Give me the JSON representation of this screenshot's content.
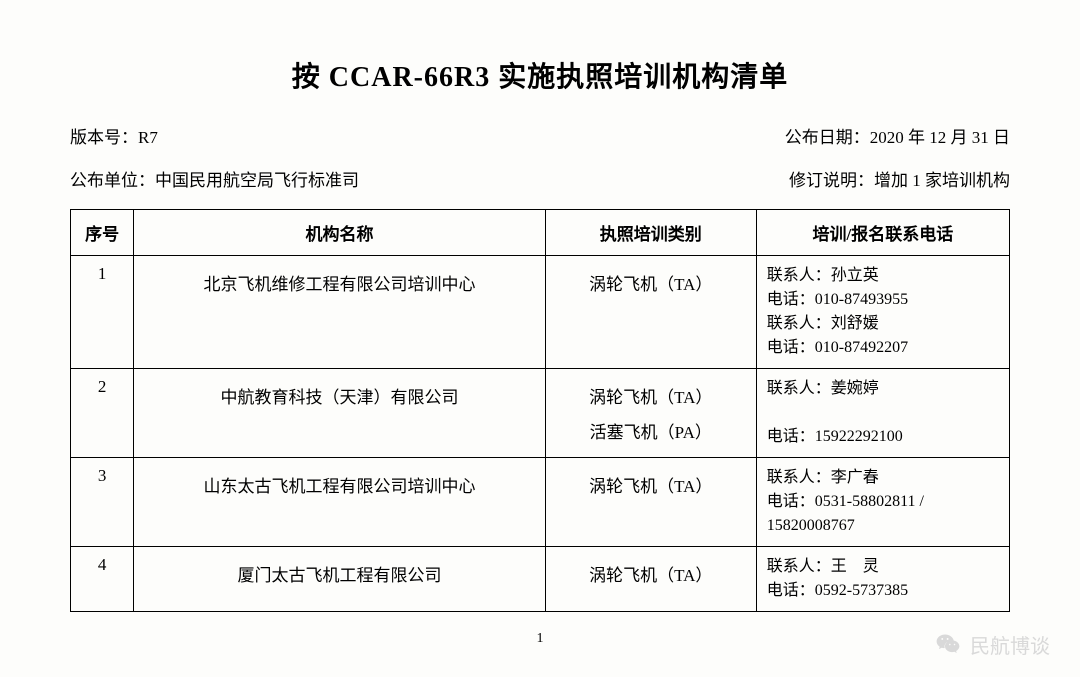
{
  "title": "按 CCAR-66R3 实施执照培训机构清单",
  "meta": {
    "version_label": "版本号：",
    "version_value": "R7",
    "pub_date_label": "公布日期：",
    "pub_date_value": "2020 年 12 月 31 日",
    "pub_org_label": "公布单位：",
    "pub_org_value": "中国民用航空局飞行标准司",
    "rev_note_label": "修订说明：",
    "rev_note_value": "增加 1 家培训机构"
  },
  "table": {
    "headers": {
      "num": "序号",
      "org": "机构名称",
      "type": "执照培训类别",
      "contact": "培训/报名联系电话"
    },
    "rows": [
      {
        "num": "1",
        "org": "北京飞机维修工程有限公司培训中心",
        "types": [
          "涡轮飞机（TA）"
        ],
        "contact": "联系人：孙立英\n电话：010-87493955\n联系人：刘舒媛\n电话：010-87492207"
      },
      {
        "num": "2",
        "org": "中航教育科技（天津）有限公司",
        "types": [
          "涡轮飞机（TA）",
          "活塞飞机（PA）"
        ],
        "contact": "联系人：姜婉婷\n\n电话：15922292100"
      },
      {
        "num": "3",
        "org": "山东太古飞机工程有限公司培训中心",
        "types": [
          "涡轮飞机（TA）"
        ],
        "contact": "联系人：李广春\n电话：0531-58802811 / 15820008767"
      },
      {
        "num": "4",
        "org": "厦门太古飞机工程有限公司",
        "types": [
          "涡轮飞机（TA）"
        ],
        "contact": "联系人：王　灵\n电话：0592-5737385"
      }
    ]
  },
  "page_num": "1",
  "footer_brand": "民航博谈"
}
